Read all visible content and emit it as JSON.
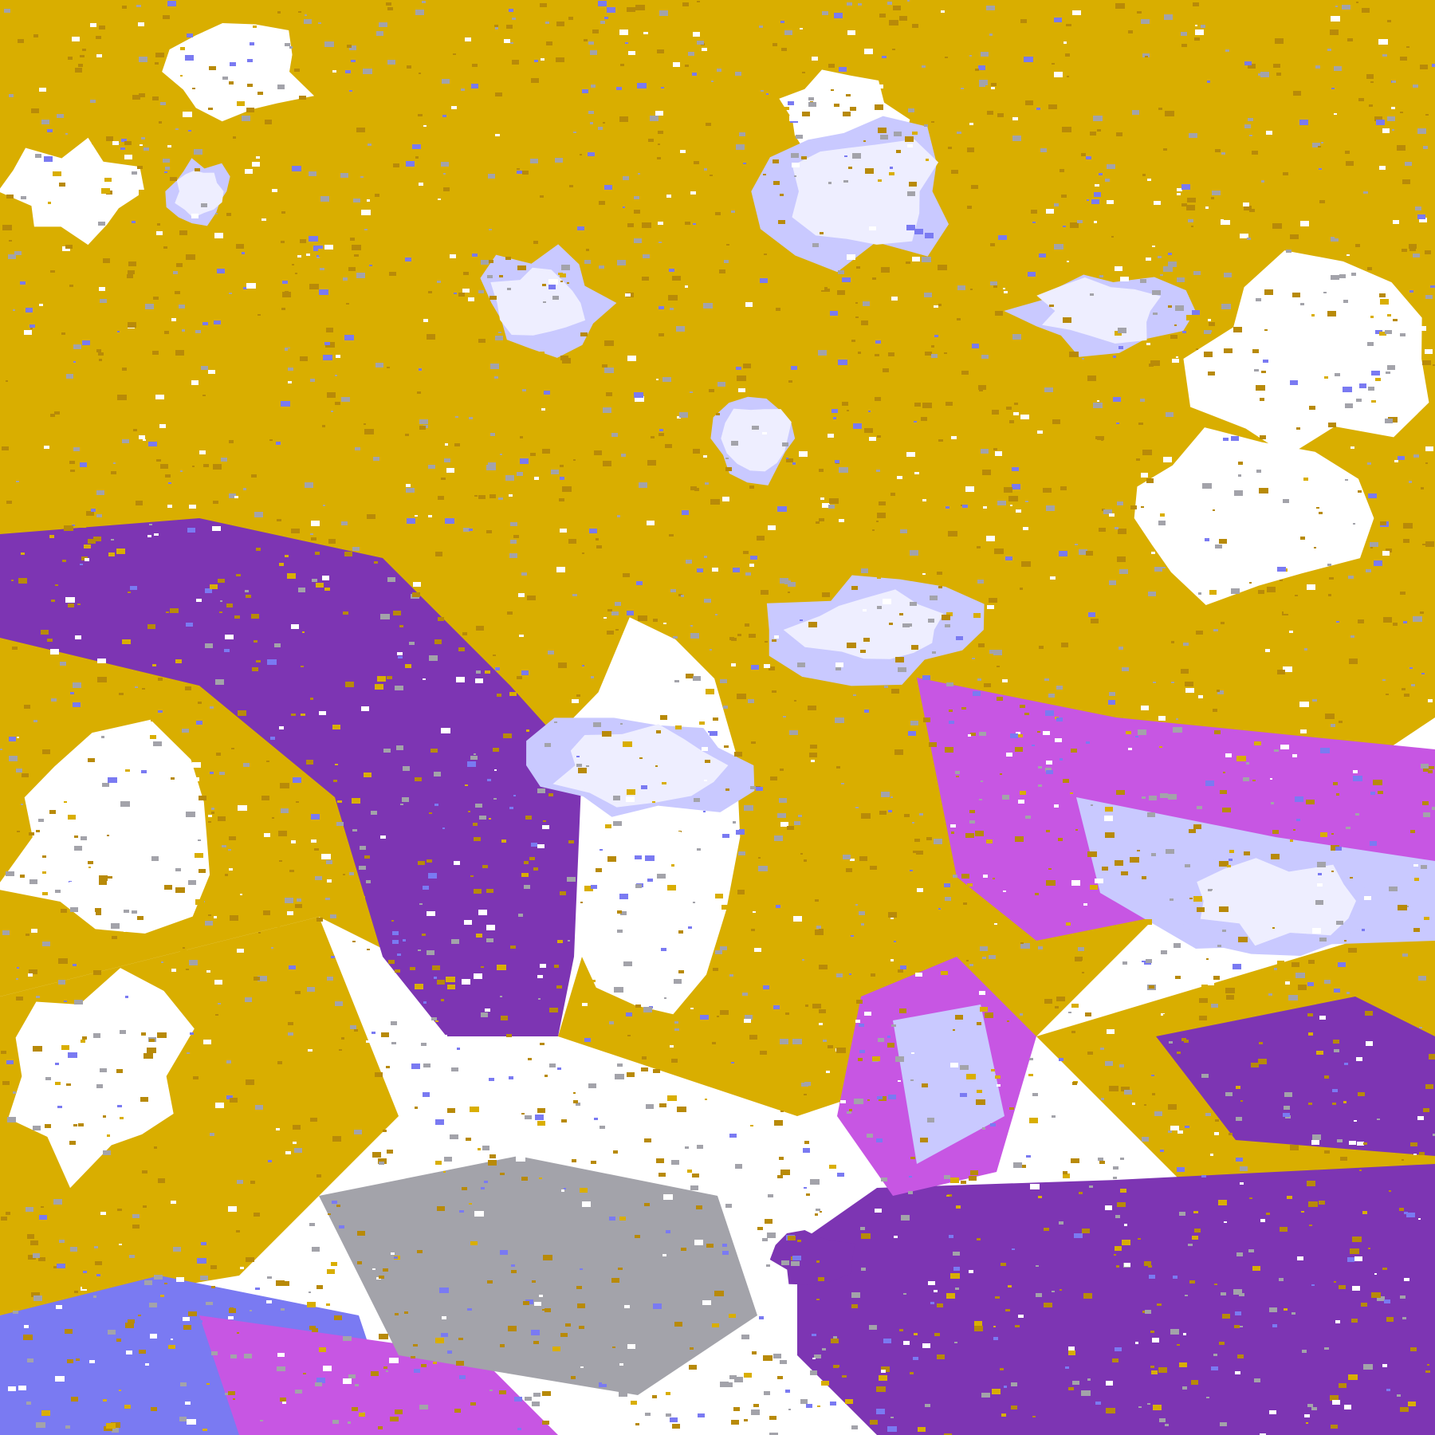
{
  "map": {
    "colors": {
      "clear": "#FFFFFF",
      "gold": "#D9AE00",
      "gold_dark": "#B88A08",
      "purple": "#7D35B3",
      "magenta": "#C756E3",
      "lavender": "#C9C9FF",
      "pale": "#EEEEFF",
      "periwinkle": "#7A7AF2",
      "gray": "#A3A3AA"
    }
  }
}
